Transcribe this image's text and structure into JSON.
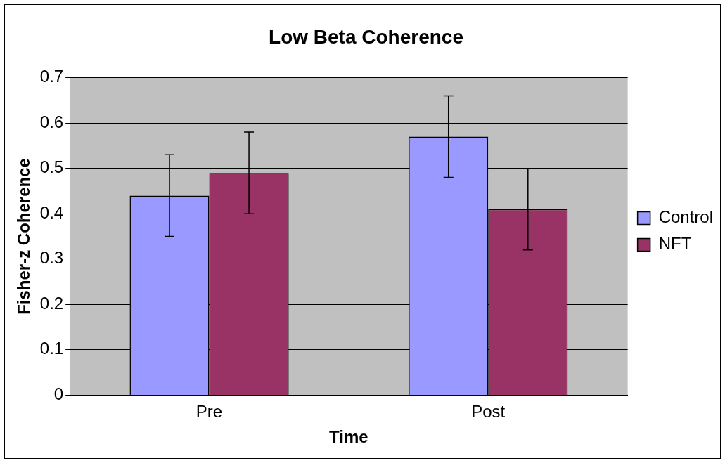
{
  "chart_data": {
    "type": "bar",
    "title": "Low Beta Coherence",
    "xlabel": "Time",
    "ylabel": "Fisher-z Coherence",
    "categories": [
      "Pre",
      "Post"
    ],
    "series": [
      {
        "name": "Control",
        "color": "#9999ff",
        "values": [
          0.44,
          0.57
        ],
        "errors": [
          0.09,
          0.09
        ]
      },
      {
        "name": "NFT",
        "color": "#993366",
        "values": [
          0.49,
          0.41
        ],
        "errors": [
          0.09,
          0.09
        ]
      }
    ],
    "ylim": [
      0,
      0.7
    ],
    "yticks": [
      0,
      0.1,
      0.2,
      0.3,
      0.4,
      0.5,
      0.6,
      0.7
    ],
    "grid": "y",
    "legend": "right"
  }
}
